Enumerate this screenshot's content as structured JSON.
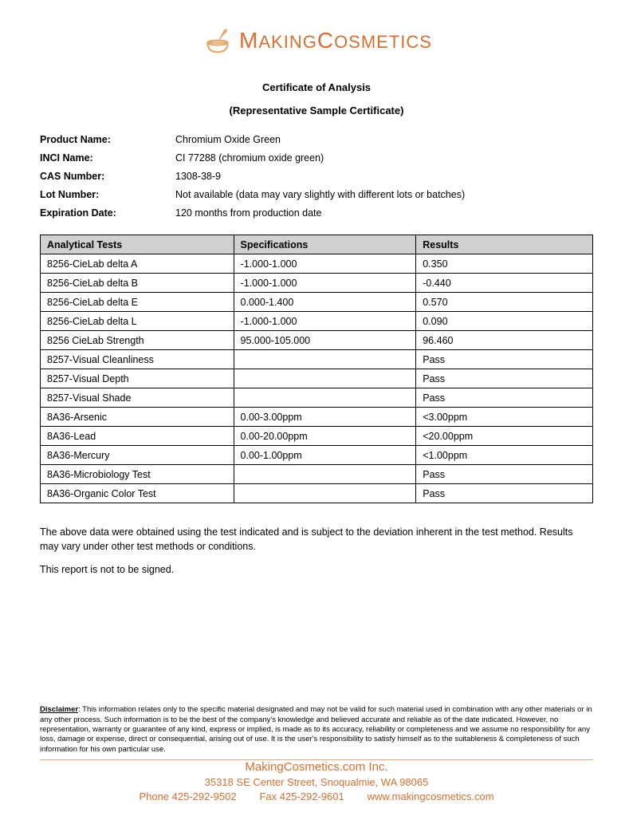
{
  "logo": {
    "text_left": "M",
    "text_mid": "AKING",
    "text_right": "C",
    "text_end": "OSMETICS",
    "color": "#d86f2e",
    "icon_color": "#e8a56a"
  },
  "titles": {
    "main": "Certificate of Analysis",
    "sub": "(Representative Sample Certificate)"
  },
  "info": {
    "product_name_label": "Product Name:",
    "product_name_value": "Chromium Oxide Green",
    "inci_label": "INCI Name:",
    "inci_value": "CI 77288 (chromium oxide green)",
    "cas_label": "CAS Number:",
    "cas_value": "1308-38-9",
    "lot_label": "Lot Number:",
    "lot_value": "Not available (data may vary slightly with different lots or batches)",
    "exp_label": "Expiration Date:",
    "exp_value": "120 months from production date"
  },
  "table": {
    "headers": [
      "Analytical Tests",
      "Specifications",
      "Results"
    ],
    "rows": [
      [
        "8256-CieLab delta A",
        "-1.000-1.000",
        "0.350"
      ],
      [
        "8256-CieLab delta B",
        "-1.000-1.000",
        "-0.440"
      ],
      [
        "8256-CieLab delta E",
        "0.000-1.400",
        "0.570"
      ],
      [
        "8256-CieLab delta L",
        "-1.000-1.000",
        "0.090"
      ],
      [
        "8256 CieLab Strength",
        "95.000-105.000",
        "96.460"
      ],
      [
        "8257-Visual Cleanliness",
        "",
        "Pass"
      ],
      [
        "8257-Visual Depth",
        "",
        "Pass"
      ],
      [
        "8257-Visual Shade",
        "",
        "Pass"
      ],
      [
        "8A36-Arsenic",
        "0.00-3.00ppm",
        "<3.00ppm"
      ],
      [
        "8A36-Lead",
        "0.00-20.00ppm",
        "<20.00ppm"
      ],
      [
        "8A36-Mercury",
        "0.00-1.00ppm",
        "<1.00ppm"
      ],
      [
        "8A36-Microbiology Test",
        "",
        "Pass"
      ],
      [
        "8A36-Organic Color Test",
        "",
        "Pass"
      ]
    ]
  },
  "notes": {
    "line1": "The above data were obtained using the test indicated and is subject to the deviation inherent in the test method. Results may vary under other test methods or conditions.",
    "line2": "This report is not to be signed."
  },
  "disclaimer": {
    "label": "Disclaimer",
    "text": ": This information relates only to the specific material designated and may not be valid for such material used in combination with any other materials or in any other process. Such information is to be the best of the company's knowledge and believed accurate and reliable as of the date indicated. However, no representation, warranty or guarantee of any kind, express or implied, is made as to its accuracy, reliability or completeness and we assume no responsibility for any loss, damage or expense, direct or consequential, arising out of use. It is the user's responsibility to satisfy himself as to the suitableness & completeness of such information for his own particular use."
  },
  "footer": {
    "company": "MakingCosmetics.com Inc.",
    "address": "35318 SE Center Street, Snoqualmie, WA 98065",
    "contact": "Phone 425-292-9502        Fax 425-292-9601        www.makingcosmetics.com"
  }
}
